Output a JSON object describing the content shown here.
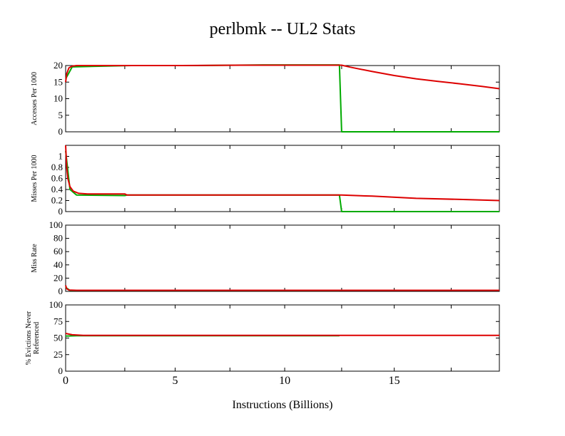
{
  "figure": {
    "title": "perlbmk -- UL2  Stats",
    "xlabel": "Instructions (Billions)"
  },
  "colors": {
    "series_red": "#dd0000",
    "series_green": "#00aa00"
  },
  "chart_data": [
    {
      "type": "line",
      "ylabel": "Accesses Per 1000",
      "xlim": [
        0,
        19.8
      ],
      "ylim": [
        0,
        20
      ],
      "yticks": [
        0,
        5,
        10,
        15,
        20
      ],
      "grid": false,
      "series": [
        {
          "color": "#dd0000",
          "x": [
            0,
            0.05,
            0.15,
            0.3,
            0.5,
            1,
            3,
            5,
            8,
            10,
            12.6,
            13,
            14,
            15,
            16,
            17,
            18,
            19,
            19.8
          ],
          "y": [
            15,
            17.5,
            19.3,
            19.8,
            20,
            20,
            20,
            20,
            20.1,
            20.1,
            20.1,
            19.5,
            18.2,
            17,
            16,
            15.2,
            14.5,
            13.7,
            13
          ]
        },
        {
          "color": "#00aa00",
          "x": [
            0,
            0.3,
            3,
            6,
            9,
            12.5,
            12.6,
            19.8
          ],
          "y": [
            16,
            19.6,
            20,
            20,
            20.2,
            20.2,
            0,
            0
          ]
        }
      ]
    },
    {
      "type": "line",
      "ylabel": "Misses Per 1000",
      "xlim": [
        0,
        19.8
      ],
      "ylim": [
        0,
        1.2
      ],
      "yticks": [
        0,
        0.2,
        0.4,
        0.6,
        0.8,
        1
      ],
      "grid": false,
      "series": [
        {
          "color": "#dd0000",
          "x": [
            0,
            0.05,
            0.1,
            0.2,
            0.35,
            0.6,
            1,
            2,
            2.7,
            2.8,
            6,
            10,
            12.6,
            14,
            16,
            18,
            19.8
          ],
          "y": [
            1.2,
            0.8,
            0.6,
            0.45,
            0.37,
            0.33,
            0.32,
            0.32,
            0.32,
            0.3,
            0.3,
            0.3,
            0.3,
            0.28,
            0.24,
            0.22,
            0.2
          ]
        },
        {
          "color": "#00aa00",
          "x": [
            0,
            0.2,
            0.5,
            2.7,
            2.8,
            12.5,
            12.6,
            19.8
          ],
          "y": [
            1.1,
            0.4,
            0.3,
            0.29,
            0.3,
            0.3,
            0,
            0
          ]
        }
      ]
    },
    {
      "type": "line",
      "ylabel": "Miss Rate",
      "xlim": [
        0,
        19.8
      ],
      "ylim": [
        0,
        100
      ],
      "yticks": [
        0,
        20,
        40,
        60,
        80,
        100
      ],
      "grid": false,
      "series": [
        {
          "color": "#dd0000",
          "x": [
            0,
            0.05,
            0.15,
            0.5,
            19.8
          ],
          "y": [
            9,
            4,
            2,
            1.6,
            1.6
          ]
        },
        {
          "color": "#00aa00",
          "x": [
            0,
            0.2,
            12.5
          ],
          "y": [
            6,
            1.5,
            1.5
          ]
        }
      ]
    },
    {
      "type": "line",
      "ylabel": "% Evictions Never Referenced",
      "xlim": [
        0,
        19.8
      ],
      "ylim": [
        0,
        100
      ],
      "yticks": [
        0,
        25,
        50,
        75,
        100
      ],
      "xticks": [
        0,
        5,
        10,
        15
      ],
      "grid": false,
      "series": [
        {
          "color": "#dd0000",
          "x": [
            0,
            0.3,
            0.8,
            19.8
          ],
          "y": [
            57,
            55,
            54,
            54
          ]
        },
        {
          "color": "#00aa00",
          "x": [
            0,
            0.5,
            12.5
          ],
          "y": [
            53,
            53.5,
            53.5
          ]
        }
      ]
    }
  ]
}
